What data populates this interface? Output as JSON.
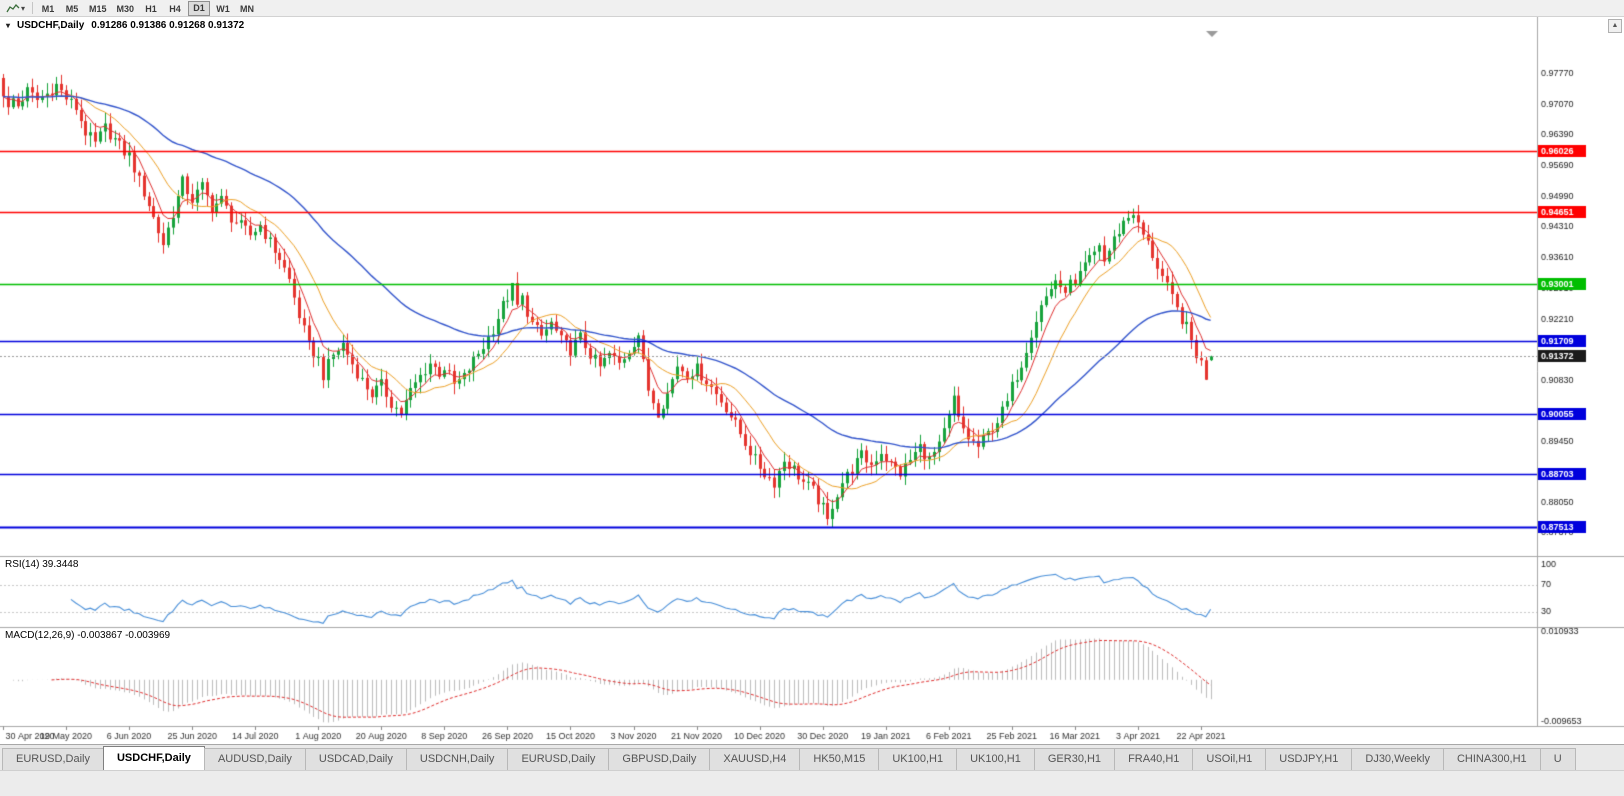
{
  "icons": {
    "collapse_marker": "▾",
    "toolbar_caret": "▾",
    "scroll_up_arrow": "▲"
  },
  "toolbar": {
    "timeframes": [
      {
        "label": "M1",
        "active": false
      },
      {
        "label": "M5",
        "active": false
      },
      {
        "label": "M15",
        "active": false
      },
      {
        "label": "M30",
        "active": false
      },
      {
        "label": "H1",
        "active": false
      },
      {
        "label": "H4",
        "active": false
      },
      {
        "label": "D1",
        "active": true
      },
      {
        "label": "W1",
        "active": false
      },
      {
        "label": "MN",
        "active": false
      }
    ]
  },
  "chart_window": {
    "title_symbol": "USDCHF,Daily",
    "title_ohlc": "0.91286 0.91386 0.91268 0.91372"
  },
  "indicators": {
    "rsi_label": "RSI(14) 39.3448",
    "macd_label": "MACD(12,26,9) -0.003867 -0.003969"
  },
  "tabs": [
    {
      "label": "EURUSD,Daily",
      "active": false
    },
    {
      "label": "USDCHF,Daily",
      "active": true
    },
    {
      "label": "AUDUSD,Daily",
      "active": false
    },
    {
      "label": "USDCAD,Daily",
      "active": false
    },
    {
      "label": "USDCNH,Daily",
      "active": false
    },
    {
      "label": "EURUSD,Daily",
      "active": false
    },
    {
      "label": "GBPUSD,Daily",
      "active": false
    },
    {
      "label": "XAUUSD,H4",
      "active": false
    },
    {
      "label": "HK50,M15",
      "active": false
    },
    {
      "label": "UK100,H1",
      "active": false
    },
    {
      "label": "UK100,H1",
      "active": false
    },
    {
      "label": "GER30,H1",
      "active": false
    },
    {
      "label": "FRA40,H1",
      "active": false
    },
    {
      "label": "USOil,H1",
      "active": false
    },
    {
      "label": "USDJPY,H1",
      "active": false
    },
    {
      "label": "DJ30,Weekly",
      "active": false
    },
    {
      "label": "CHINA300,H1",
      "active": false
    },
    {
      "label": "U",
      "active": false
    }
  ],
  "colors": {
    "candle_up": "#17A33C",
    "candle_down": "#E5342E",
    "ma_fast": "#E03030",
    "ma_mid": "#EDA128",
    "ma_slow": "#3355CC",
    "hline_red": "#FF0000",
    "hline_green": "#00BE00",
    "hline_blue": "#0000DD",
    "current_price_box": "#1A1A1A",
    "rsi_line": "#4A90D9",
    "macd_hist": "#BDBDBD",
    "macd_signal": "#E03030",
    "panel_border": "#A6A6A6"
  },
  "chart_data": {
    "type": "candlestick+indicators",
    "symbol": "USDCHF",
    "timeframe": "Daily",
    "last_ohlc": {
      "open": 0.91286,
      "high": 0.91386,
      "low": 0.91268,
      "close": 0.91372
    },
    "label_every_n_candles": 13,
    "x_axis_labels": [
      "30 Apr 2020",
      "19 May 2020",
      "6 Jun 2020",
      "25 Jun 2020",
      "14 Jul 2020",
      "1 Aug 2020",
      "20 Aug 2020",
      "8 Sep 2020",
      "26 Sep 2020",
      "15 Oct 2020",
      "3 Nov 2020",
      "21 Nov 2020",
      "10 Dec 2020",
      "30 Dec 2020",
      "19 Jan 2021",
      "6 Feb 2021",
      "25 Feb 2021",
      "16 Mar 2021",
      "3 Apr 2021",
      "22 Apr 2021"
    ],
    "main": {
      "ylim": [
        0.86848,
        0.98767
      ],
      "price_axis_labels": [
        "0.97770",
        "0.97070",
        "0.96390",
        "0.95690",
        "0.94990",
        "0.94310",
        "0.93610",
        "0.92910",
        "0.92210",
        "0.90830",
        "0.89450",
        "0.88750",
        "0.88050",
        "0.87370"
      ],
      "hlines": [
        {
          "value": 0.96026,
          "label": "0.96026",
          "color": "red",
          "width": 1.3
        },
        {
          "value": 0.94651,
          "label": "0.94651",
          "color": "red",
          "width": 1.3
        },
        {
          "value": 0.93001,
          "label": "0.93001",
          "color": "green",
          "width": 1.6
        },
        {
          "value": 0.91709,
          "label": "0.91709",
          "color": "blue",
          "width": 1.6
        },
        {
          "value": 0.90055,
          "label": "0.90055",
          "color": "blue",
          "width": 1.6
        },
        {
          "value": 0.88703,
          "label": "0.88703",
          "color": "blue",
          "width": 1.6
        },
        {
          "value": 0.87513,
          "label": "0.87513",
          "color": "blue",
          "width": 2.2
        }
      ],
      "current_price": {
        "value": 0.91372,
        "label": "0.91372"
      },
      "candle_count": 250,
      "moving_averages": [
        {
          "name": "fast",
          "type": "ema",
          "period": 6,
          "color_key": "ma_fast",
          "width": 1
        },
        {
          "name": "medium",
          "type": "sma",
          "period": 13,
          "color_key": "ma_mid",
          "width": 1
        },
        {
          "name": "slow",
          "type": "ema",
          "period": 50,
          "color_key": "ma_slow",
          "width": 1.4
        }
      ],
      "close_anchors": [
        [
          0,
          0.9735
        ],
        [
          1,
          0.9695
        ],
        [
          2,
          0.972
        ],
        [
          3,
          0.9705
        ],
        [
          5,
          0.9738
        ],
        [
          7,
          0.9718
        ],
        [
          9,
          0.9732
        ],
        [
          11,
          0.9752
        ],
        [
          13,
          0.9722
        ],
        [
          15,
          0.97
        ],
        [
          17,
          0.9645
        ],
        [
          19,
          0.9618
        ],
        [
          21,
          0.9655
        ],
        [
          23,
          0.9628
        ],
        [
          25,
          0.96
        ],
        [
          26,
          0.9592
        ],
        [
          28,
          0.9535
        ],
        [
          30,
          0.9482
        ],
        [
          32,
          0.942
        ],
        [
          33,
          0.9392
        ],
        [
          35,
          0.9462
        ],
        [
          37,
          0.9532
        ],
        [
          39,
          0.9492
        ],
        [
          41,
          0.9522
        ],
        [
          43,
          0.9475
        ],
        [
          45,
          0.9492
        ],
        [
          47,
          0.9452
        ],
        [
          49,
          0.9432
        ],
        [
          51,
          0.9412
        ],
        [
          53,
          0.9435
        ],
        [
          55,
          0.9395
        ],
        [
          57,
          0.936
        ],
        [
          59,
          0.931
        ],
        [
          61,
          0.923
        ],
        [
          63,
          0.916
        ],
        [
          65,
          0.913
        ],
        [
          66,
          0.9095
        ],
        [
          68,
          0.914
        ],
        [
          70,
          0.9165
        ],
        [
          72,
          0.912
        ],
        [
          74,
          0.9082
        ],
        [
          76,
          0.9052
        ],
        [
          78,
          0.9072
        ],
        [
          80,
          0.9032
        ],
        [
          82,
          0.9008
        ],
        [
          84,
          0.9058
        ],
        [
          86,
          0.9092
        ],
        [
          88,
          0.9122
        ],
        [
          90,
          0.91
        ],
        [
          91,
          0.9112
        ],
        [
          93,
          0.9072
        ],
        [
          95,
          0.909
        ],
        [
          97,
          0.9128
        ],
        [
          99,
          0.916
        ],
        [
          101,
          0.92
        ],
        [
          103,
          0.9252
        ],
        [
          105,
          0.9292
        ],
        [
          106,
          0.925
        ],
        [
          107,
          0.9268
        ],
        [
          109,
          0.921
        ],
        [
          111,
          0.9182
        ],
        [
          113,
          0.9212
        ],
        [
          115,
          0.9172
        ],
        [
          117,
          0.9152
        ],
        [
          119,
          0.918
        ],
        [
          121,
          0.9142
        ],
        [
          123,
          0.9112
        ],
        [
          125,
          0.9142
        ],
        [
          127,
          0.912
        ],
        [
          129,
          0.9152
        ],
        [
          131,
          0.9188
        ],
        [
          132,
          0.912
        ],
        [
          133,
          0.9062
        ],
        [
          135,
          0.9012
        ],
        [
          137,
          0.9052
        ],
        [
          139,
          0.9118
        ],
        [
          141,
          0.9098
        ],
        [
          143,
          0.9108
        ],
        [
          145,
          0.9082
        ],
        [
          147,
          0.9052
        ],
        [
          149,
          0.9022
        ],
        [
          151,
          0.8982
        ],
        [
          153,
          0.8942
        ],
        [
          155,
          0.8902
        ],
        [
          157,
          0.8872
        ],
        [
          159,
          0.8852
        ],
        [
          161,
          0.8902
        ],
        [
          163,
          0.8882
        ],
        [
          165,
          0.8852
        ],
        [
          167,
          0.8832
        ],
        [
          169,
          0.8792
        ],
        [
          170,
          0.8762
        ],
        [
          171,
          0.8802
        ],
        [
          173,
          0.8852
        ],
        [
          175,
          0.8882
        ],
        [
          177,
          0.8912
        ],
        [
          179,
          0.8892
        ],
        [
          181,
          0.8922
        ],
        [
          183,
          0.8892
        ],
        [
          185,
          0.8872
        ],
        [
          187,
          0.8902
        ],
        [
          189,
          0.8932
        ],
        [
          191,
          0.8902
        ],
        [
          193,
          0.8932
        ],
        [
          195,
          0.8998
        ],
        [
          196,
          0.9042
        ],
        [
          197,
          0.8992
        ],
        [
          199,
          0.8952
        ],
        [
          201,
          0.8932
        ],
        [
          203,
          0.8962
        ],
        [
          205,
          0.8992
        ],
        [
          207,
          0.9032
        ],
        [
          208,
          0.9068
        ],
        [
          210,
          0.9122
        ],
        [
          212,
          0.9192
        ],
        [
          214,
          0.9252
        ],
        [
          216,
          0.9292
        ],
        [
          217,
          0.9312
        ],
        [
          218,
          0.9282
        ],
        [
          220,
          0.9302
        ],
        [
          221,
          0.9292
        ],
        [
          223,
          0.9342
        ],
        [
          225,
          0.9372
        ],
        [
          226,
          0.9392
        ],
        [
          227,
          0.9352
        ],
        [
          229,
          0.9402
        ],
        [
          231,
          0.9442
        ],
        [
          233,
          0.9465
        ],
        [
          234,
          0.9432
        ],
        [
          236,
          0.9392
        ],
        [
          238,
          0.9342
        ],
        [
          240,
          0.9292
        ],
        [
          242,
          0.9242
        ],
        [
          244,
          0.9202
        ],
        [
          245,
          0.9172
        ],
        [
          246,
          0.9142
        ],
        [
          247,
          0.9122
        ],
        [
          248,
          0.9092
        ],
        [
          249,
          0.9137
        ]
      ],
      "forced_points": [
        {
          "i": 0,
          "open": 0.9768,
          "high": 0.9777
        },
        {
          "i": 33,
          "low": 0.937
        },
        {
          "i": 82,
          "low": 0.8998
        },
        {
          "i": 105,
          "high": 0.9296
        },
        {
          "i": 135,
          "low": 0.8999
        },
        {
          "i": 170,
          "low": 0.87545
        },
        {
          "i": 233,
          "high": 0.9472
        },
        {
          "i": 248,
          "low": 0.90835
        },
        {
          "i": 249,
          "open": 0.91286,
          "high": 0.91386,
          "low": 0.91268,
          "close": 0.91372
        }
      ]
    },
    "rsi": {
      "period": 14,
      "current": 39.3448,
      "levels": [
        100,
        70,
        30
      ],
      "level_labels": [
        "100",
        "70",
        "30"
      ]
    },
    "macd": {
      "fast": 12,
      "slow": 26,
      "signal": 9,
      "current_main": -0.003867,
      "current_signal": -0.003969,
      "ylim": [
        -0.009653,
        0.010933
      ],
      "axis_labels": [
        "0.010933",
        "-0.009653"
      ]
    }
  }
}
